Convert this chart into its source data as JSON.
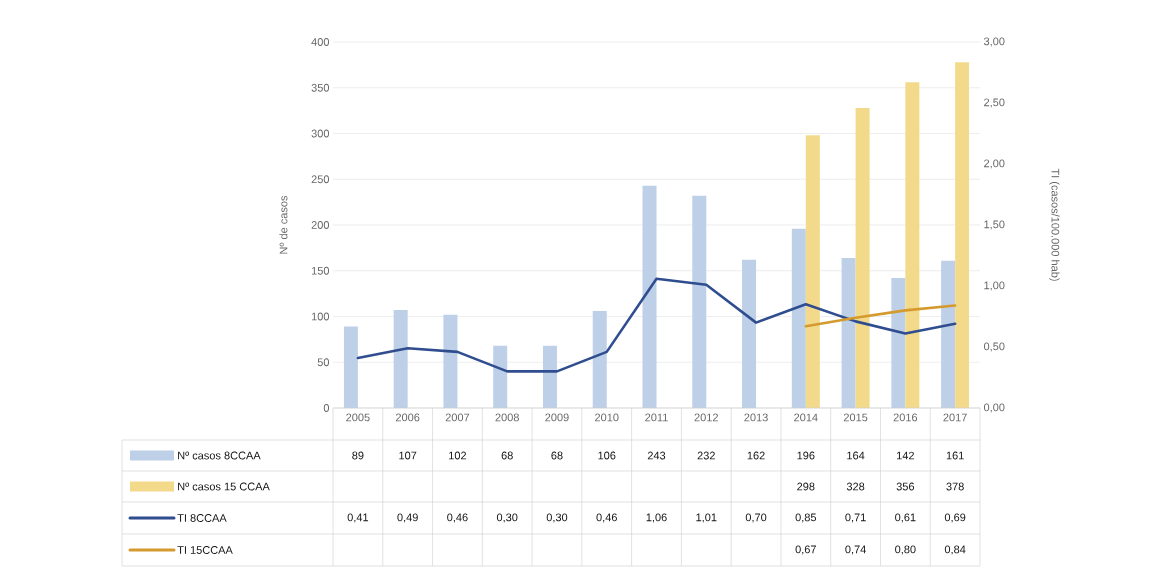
{
  "chart_data": {
    "type": "bar",
    "ylabel": "Nº de casos",
    "y2label": "TI (casos/100.000 hab)",
    "categories": [
      "2005",
      "2006",
      "2007",
      "2008",
      "2009",
      "2010",
      "2011",
      "2012",
      "2013",
      "2014",
      "2015",
      "2016",
      "2017"
    ],
    "series": [
      {
        "name": "Nº casos 8CCAA",
        "color": "#bdd0e7",
        "values": [
          89,
          107,
          102,
          68,
          68,
          106,
          243,
          232,
          162,
          196,
          164,
          142,
          161
        ],
        "value_labels": [
          "89",
          "107",
          "102",
          "68",
          "68",
          "106",
          "243",
          "232",
          "162",
          "196",
          "164",
          "142",
          "161"
        ]
      },
      {
        "name": "Nº casos 15 CCAA",
        "color": "#f3da8b",
        "values": [
          null,
          null,
          null,
          null,
          null,
          null,
          null,
          null,
          null,
          298,
          328,
          356,
          378
        ],
        "value_labels": [
          null,
          null,
          null,
          null,
          null,
          null,
          null,
          null,
          null,
          "298",
          "328",
          "356",
          "378"
        ]
      },
      {
        "name": "TI 8CCAA",
        "type": "line",
        "axis": "y2",
        "color": "#2f4d8f",
        "values": [
          0.41,
          0.49,
          0.46,
          0.3,
          0.3,
          0.46,
          1.06,
          1.01,
          0.7,
          0.85,
          0.71,
          0.61,
          0.69
        ],
        "value_labels": [
          "0,41",
          "0,49",
          "0,46",
          "0,30",
          "0,30",
          "0,46",
          "1,06",
          "1,01",
          "0,70",
          "0,85",
          "0,71",
          "0,61",
          "0,69"
        ]
      },
      {
        "name": "TI 15CCAA",
        "type": "line",
        "axis": "y2",
        "color": "#d49a2e",
        "values": [
          null,
          null,
          null,
          null,
          null,
          null,
          null,
          null,
          null,
          0.67,
          0.74,
          0.8,
          0.84
        ],
        "value_labels": [
          null,
          null,
          null,
          null,
          null,
          null,
          null,
          null,
          null,
          "0,67",
          "0,74",
          "0,80",
          "0,84"
        ]
      }
    ],
    "ylim": [
      0,
      400
    ],
    "yticks": [
      0,
      50,
      100,
      150,
      200,
      250,
      300,
      350,
      400
    ],
    "y2lim": [
      0,
      3
    ],
    "y2ticks": [
      {
        "value": 0,
        "label": "0,00"
      },
      {
        "value": 0.5,
        "label": "0,50"
      },
      {
        "value": 1,
        "label": "1,00"
      },
      {
        "value": 1.5,
        "label": "1,50"
      },
      {
        "value": 2,
        "label": "2,00"
      },
      {
        "value": 2.5,
        "label": "2,50"
      },
      {
        "value": 3,
        "label": "3,00"
      }
    ],
    "grid": "y",
    "legend": "bottom",
    "line_style": "solid"
  }
}
